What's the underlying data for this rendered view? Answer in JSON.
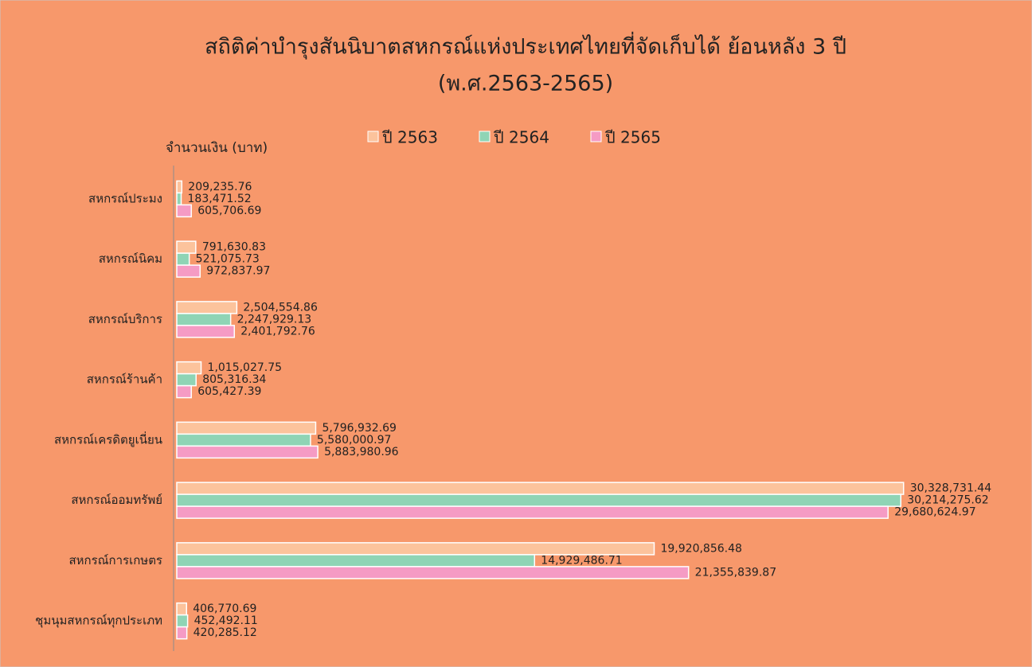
{
  "chart_data": {
    "type": "hbar",
    "title": "สถิติค่าบำรุงสันนิบาตสหกรณ์แห่งประเทศไทยที่จัดเก็บได้ ย้อนหลัง 3 ปี",
    "subtitle": "(พ.ศ.2563-2565)",
    "y_label": "จำนวนเงิน (บาท)",
    "categories": [
      "สหกรณ์ประมง",
      "สหกรณ์นิคม",
      "สหกรณ์บริการ",
      "สหกรณ์ร้านค้า",
      "สหกรณ์เครดิตยูเนี่ยน",
      "สหกรณ์ออมทรัพย์",
      "สหกรณ์การเกษตร",
      "ชุมนุมสหกรณ์ทุกประเภท"
    ],
    "series": [
      {
        "name": "ปี 2563",
        "color": "#fcc39c",
        "values": [
          209235.76,
          791630.83,
          2504554.86,
          1015027.75,
          5796932.69,
          30328731.44,
          19920856.48,
          406770.69
        ],
        "value_labels": [
          "209,235.76",
          "791,630.83",
          "2,504,554.86",
          "1,015,027.75",
          "5,796,932.69",
          "30,328,731.44",
          "19,920,856.48",
          "406,770.69"
        ]
      },
      {
        "name": "ปี 2564",
        "color": "#8fd4b5",
        "values": [
          183471.52,
          521075.73,
          2247929.13,
          805316.34,
          5580000.97,
          30214275.62,
          14929486.71,
          452492.11
        ],
        "value_labels": [
          "183,471.52",
          "521,075.73",
          "2,247,929.13",
          "805,316.34",
          "5,580,000.97",
          "30,214,275.62",
          "14,929,486.71",
          "452,492.11"
        ]
      },
      {
        "name": "ปี 2565",
        "color": "#f59bc4",
        "values": [
          605706.69,
          972837.97,
          2401792.76,
          605427.39,
          5883980.96,
          29680624.97,
          21355839.87,
          420285.12
        ],
        "value_labels": [
          "605,706.69",
          "972,837.97",
          "2,401,792.76",
          "605,427.39",
          "5,883,980.96",
          "29,680,624.97",
          "21,355,839.87",
          "420,285.12"
        ]
      }
    ],
    "xlim": [
      0,
      32000000
    ],
    "legend": "top"
  }
}
